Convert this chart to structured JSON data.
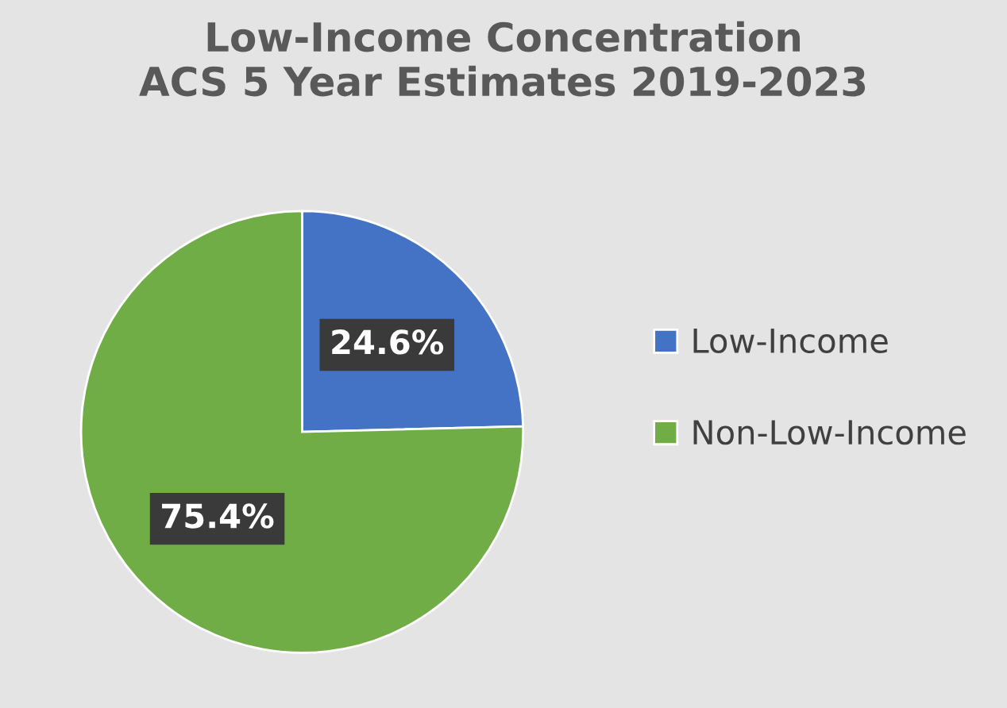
{
  "chart_data": {
    "type": "pie",
    "title": "Low-Income Concentration\nACS 5 Year Estimates 2019-2023",
    "categories": [
      "Low-Income",
      "Non-Low-Income"
    ],
    "values": [
      24.6,
      75.4
    ],
    "colors": [
      "#4472c4",
      "#70ad47"
    ],
    "value_labels": [
      "24.6%",
      "75.4%"
    ],
    "legend": "right"
  }
}
